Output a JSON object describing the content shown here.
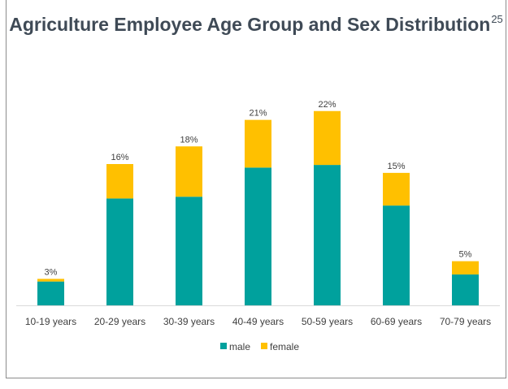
{
  "chart_data": {
    "type": "bar",
    "stacked": true,
    "title": "Agriculture Employee Age Group and Sex Distribution",
    "title_footnote": "25",
    "categories": [
      "10-19 years",
      "20-29 years",
      "30-39 years",
      "40-49 years",
      "50-59 years",
      "60-69 years",
      "70-79 years"
    ],
    "series": [
      {
        "name": "male",
        "color": "#00a19d",
        "values": [
          2.7,
          12.1,
          12.3,
          15.6,
          15.9,
          11.3,
          3.5
        ]
      },
      {
        "name": "female",
        "color": "#ffc000",
        "values": [
          0.3,
          3.9,
          5.7,
          5.4,
          6.1,
          3.7,
          1.5
        ]
      }
    ],
    "totals": [
      3,
      16,
      18,
      21,
      22,
      15,
      5
    ],
    "total_labels": [
      "3%",
      "16%",
      "18%",
      "21%",
      "22%",
      "15%",
      "5%"
    ],
    "ylim": [
      0,
      24
    ],
    "grid": false,
    "legend": "bottom"
  }
}
